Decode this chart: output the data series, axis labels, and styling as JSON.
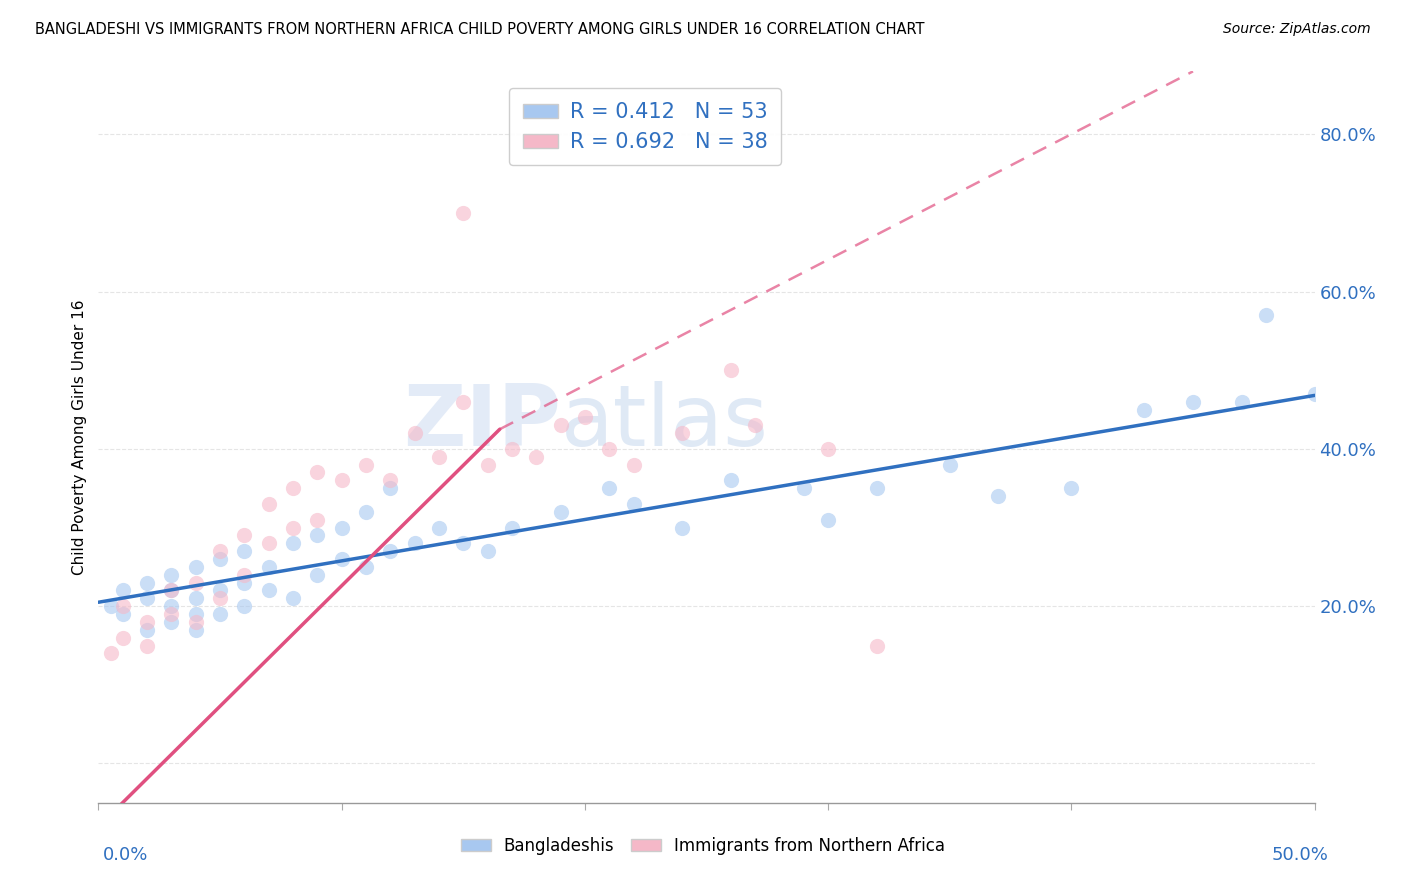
{
  "title": "BANGLADESHI VS IMMIGRANTS FROM NORTHERN AFRICA CHILD POVERTY AMONG GIRLS UNDER 16 CORRELATION CHART",
  "source": "Source: ZipAtlas.com",
  "ylabel": "Child Poverty Among Girls Under 16",
  "ytick_vals": [
    0.0,
    0.2,
    0.4,
    0.6,
    0.8
  ],
  "ytick_labels": [
    "",
    "20.0%",
    "40.0%",
    "60.0%",
    "80.0%"
  ],
  "xlim": [
    0.0,
    0.5
  ],
  "ylim": [
    -0.05,
    0.88
  ],
  "blue_R": "R = 0.412",
  "blue_N": "N = 53",
  "pink_R": "R = 0.692",
  "pink_N": "N = 38",
  "blue_color": "#a8c8f0",
  "pink_color": "#f5b8c8",
  "blue_line_color": "#3070c0",
  "pink_line_color": "#e05080",
  "watermark_zip": "ZIP",
  "watermark_atlas": "atlas",
  "legend_label_blue": "Bangladeshis",
  "legend_label_pink": "Immigrants from Northern Africa",
  "blue_scatter_x": [
    0.005,
    0.01,
    0.01,
    0.02,
    0.02,
    0.02,
    0.03,
    0.03,
    0.03,
    0.03,
    0.04,
    0.04,
    0.04,
    0.04,
    0.05,
    0.05,
    0.05,
    0.06,
    0.06,
    0.06,
    0.07,
    0.07,
    0.08,
    0.08,
    0.09,
    0.09,
    0.1,
    0.1,
    0.11,
    0.11,
    0.12,
    0.12,
    0.13,
    0.14,
    0.15,
    0.16,
    0.17,
    0.19,
    0.21,
    0.22,
    0.24,
    0.26,
    0.29,
    0.3,
    0.32,
    0.35,
    0.37,
    0.4,
    0.43,
    0.45,
    0.47,
    0.48,
    0.5
  ],
  "blue_scatter_y": [
    0.2,
    0.19,
    0.22,
    0.17,
    0.21,
    0.23,
    0.18,
    0.2,
    0.22,
    0.24,
    0.17,
    0.19,
    0.21,
    0.25,
    0.19,
    0.22,
    0.26,
    0.2,
    0.23,
    0.27,
    0.22,
    0.25,
    0.21,
    0.28,
    0.24,
    0.29,
    0.26,
    0.3,
    0.25,
    0.32,
    0.27,
    0.35,
    0.28,
    0.3,
    0.28,
    0.27,
    0.3,
    0.32,
    0.35,
    0.33,
    0.3,
    0.36,
    0.35,
    0.31,
    0.35,
    0.38,
    0.34,
    0.35,
    0.45,
    0.46,
    0.46,
    0.57,
    0.47
  ],
  "pink_scatter_x": [
    0.005,
    0.01,
    0.01,
    0.02,
    0.02,
    0.03,
    0.03,
    0.04,
    0.04,
    0.05,
    0.05,
    0.06,
    0.06,
    0.07,
    0.07,
    0.08,
    0.08,
    0.09,
    0.09,
    0.1,
    0.11,
    0.12,
    0.13,
    0.14,
    0.15,
    0.15,
    0.16,
    0.17,
    0.18,
    0.19,
    0.2,
    0.21,
    0.22,
    0.24,
    0.26,
    0.27,
    0.3,
    0.32
  ],
  "pink_scatter_y": [
    0.14,
    0.16,
    0.2,
    0.15,
    0.18,
    0.19,
    0.22,
    0.18,
    0.23,
    0.21,
    0.27,
    0.24,
    0.29,
    0.28,
    0.33,
    0.3,
    0.35,
    0.31,
    0.37,
    0.36,
    0.38,
    0.36,
    0.42,
    0.39,
    0.7,
    0.46,
    0.38,
    0.4,
    0.39,
    0.43,
    0.44,
    0.4,
    0.38,
    0.42,
    0.5,
    0.43,
    0.4,
    0.15
  ],
  "blue_trend": [
    0.0,
    0.5,
    0.205,
    0.468
  ],
  "pink_trend_solid": [
    0.005,
    0.165,
    -0.065,
    0.425
  ],
  "pink_trend_dashed": [
    0.165,
    0.45,
    0.425,
    0.88
  ]
}
